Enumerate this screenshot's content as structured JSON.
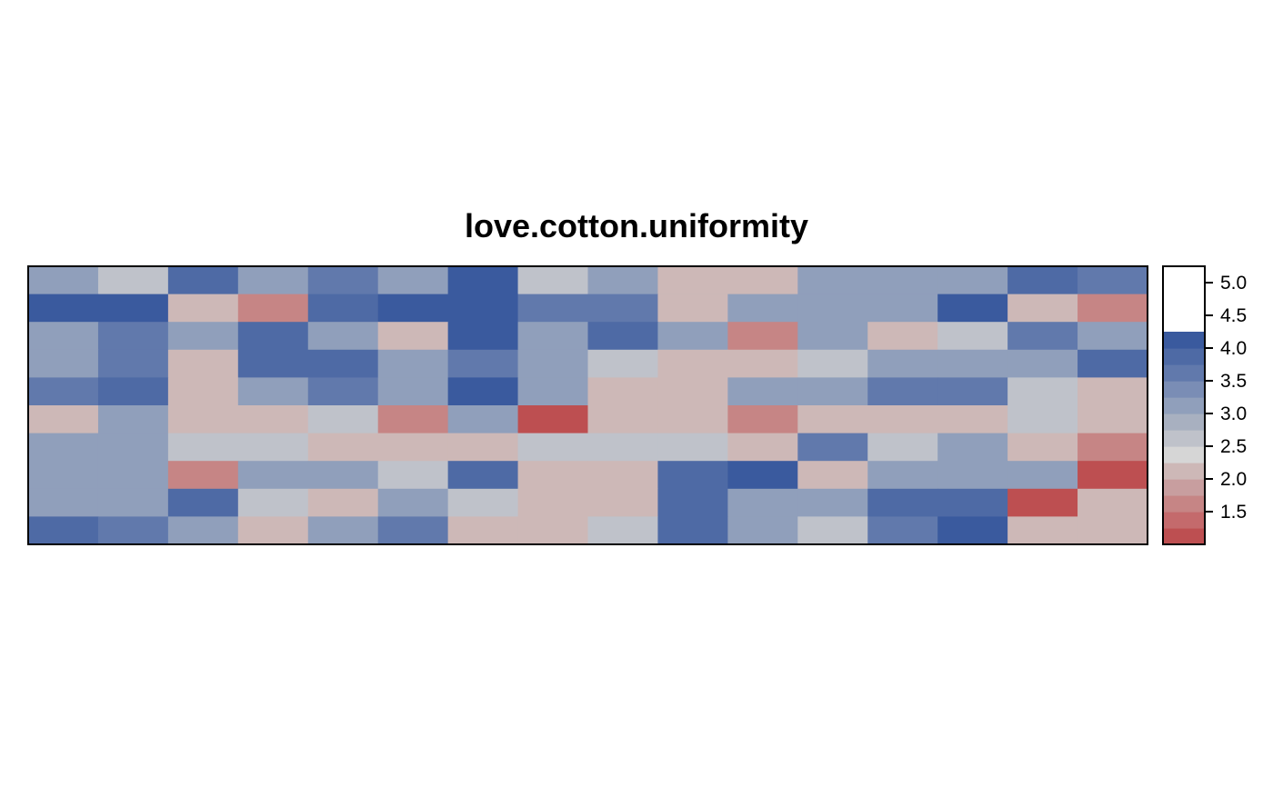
{
  "chart_data": {
    "type": "heatmap",
    "title": "love.cotton.uniformity",
    "xlabel": "",
    "ylabel": "",
    "n_cols": 16,
    "n_rows": 10,
    "values": [
      [
        3.0,
        2.5,
        3.8,
        3.0,
        3.5,
        3.0,
        4.5,
        2.5,
        3.2,
        2.0,
        2.0,
        3.0,
        3.2,
        3.0,
        3.8,
        3.5
      ],
      [
        4.5,
        4.7,
        2.2,
        1.5,
        3.8,
        4.0,
        4.0,
        3.5,
        3.5,
        2.2,
        3.2,
        3.0,
        3.2,
        5.0,
        2.2,
        1.5
      ],
      [
        3.0,
        3.5,
        3.2,
        3.8,
        3.2,
        2.2,
        4.5,
        3.2,
        3.8,
        3.0,
        1.5,
        3.0,
        2.0,
        2.5,
        3.5,
        3.2
      ],
      [
        3.0,
        3.5,
        2.2,
        3.8,
        3.8,
        3.2,
        3.5,
        3.0,
        2.5,
        2.2,
        2.0,
        2.5,
        3.2,
        3.2,
        3.0,
        3.8
      ],
      [
        3.5,
        3.8,
        2.0,
        3.2,
        3.5,
        3.0,
        4.5,
        3.0,
        2.2,
        2.0,
        3.0,
        3.0,
        3.5,
        3.5,
        2.5,
        2.2
      ],
      [
        2.2,
        3.0,
        2.2,
        2.2,
        2.5,
        1.7,
        3.2,
        1.2,
        2.0,
        2.0,
        1.7,
        2.0,
        2.2,
        2.2,
        2.5,
        2.0
      ],
      [
        3.0,
        3.0,
        2.5,
        2.5,
        2.0,
        2.0,
        2.0,
        2.5,
        2.5,
        2.5,
        2.2,
        3.5,
        2.5,
        3.2,
        2.0,
        1.7
      ],
      [
        3.2,
        3.2,
        1.5,
        3.0,
        3.0,
        2.5,
        3.8,
        2.0,
        2.0,
        3.8,
        4.2,
        2.2,
        3.0,
        3.0,
        3.0,
        1.2
      ],
      [
        3.0,
        3.2,
        3.8,
        2.5,
        2.0,
        3.0,
        2.5,
        2.0,
        2.2,
        3.8,
        3.0,
        3.2,
        3.8,
        3.8,
        1.2,
        2.0
      ],
      [
        3.8,
        3.5,
        3.0,
        2.0,
        3.2,
        3.5,
        2.2,
        2.0,
        2.5,
        3.8,
        3.2,
        2.5,
        3.5,
        4.2,
        2.0,
        2.0
      ]
    ],
    "colorbar": {
      "min": 1.0,
      "max": 5.25,
      "step": 0.25,
      "ticks": [
        1.5,
        2.0,
        2.5,
        3.0,
        3.5,
        4.0,
        4.5,
        5.0
      ],
      "tick_labels": [
        "1.5",
        "2.0",
        "2.5",
        "3.0",
        "3.5",
        "4.0",
        "4.5",
        "5.0"
      ],
      "colors": [
        "#bd4f51",
        "#c46a6c",
        "#c68585",
        "#c89e9f",
        "#cdb8b7",
        "#d6d6d6",
        "#bfc2ca",
        "#a8b0c0",
        "#909fbb",
        "#7a8db5",
        "#6179ac",
        "#4e6aa5",
        "#3a5a9e"
      ]
    },
    "legend": "colorbar-right",
    "grid": false
  }
}
